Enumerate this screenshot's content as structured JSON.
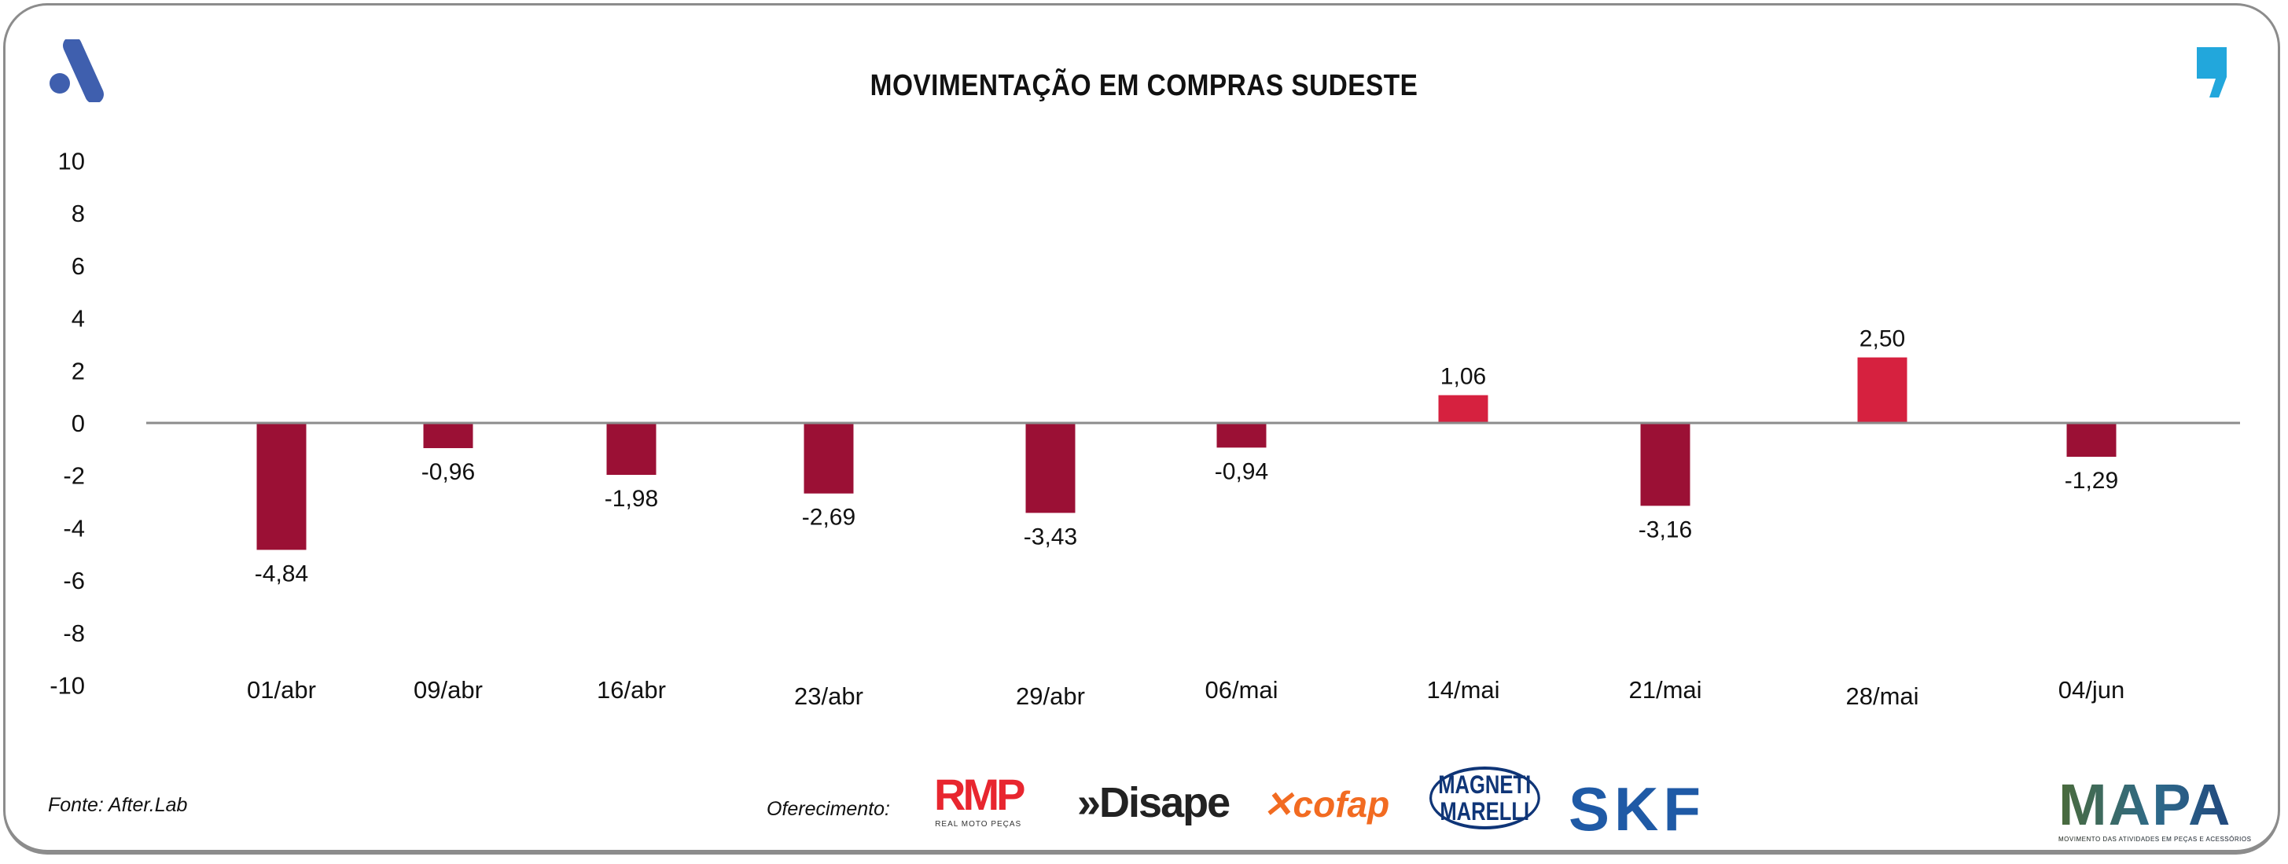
{
  "chart_data": {
    "type": "bar",
    "title": "MOVIMENTAÇÃO EM COMPRAS SUDESTE",
    "categories": [
      "01/abr",
      "09/abr",
      "16/abr",
      "23/abr",
      "29/abr",
      "06/mai",
      "14/mai",
      "21/mai",
      "28/mai",
      "04/jun"
    ],
    "values": [
      -4.84,
      -0.96,
      -1.98,
      -2.69,
      -3.43,
      -0.94,
      1.06,
      -3.16,
      2.5,
      -1.29
    ],
    "data_labels": [
      "-4,84",
      "-0,96",
      "-1,98",
      "-2,69",
      "-3,43",
      "-0,94",
      "1,06",
      "-3,16",
      "2,50",
      "-1,29"
    ],
    "yticks": [
      "10",
      "8",
      "6",
      "4",
      "2",
      "0",
      "-2",
      "-4",
      "-6",
      "-8",
      "-10"
    ],
    "ylim": [
      -10,
      10
    ],
    "grid": false,
    "legend": "none",
    "colors": {
      "negative": "#9b1035",
      "positive": "#d6213f",
      "axis": "#8c8c8c"
    }
  },
  "footer": {
    "source": "Fonte: After.Lab",
    "offer_label": "Oferecimento:",
    "sponsors": {
      "rmp": "RMP",
      "rmp_sub": "REAL MOTO PEÇAS",
      "disape": "»Disape",
      "cofap": "cofap",
      "magneti": "MAGNETI",
      "marelli": "MARELLI",
      "skf": "SKF",
      "mapa": "MAPA",
      "mapa_sub": "MOVIMENTO DAS ATIVIDADES EM PEÇAS E ACESSÓRIOS"
    }
  },
  "icons": {
    "top_left": "afterlab-a-logo",
    "top_right": "comma-logo"
  }
}
